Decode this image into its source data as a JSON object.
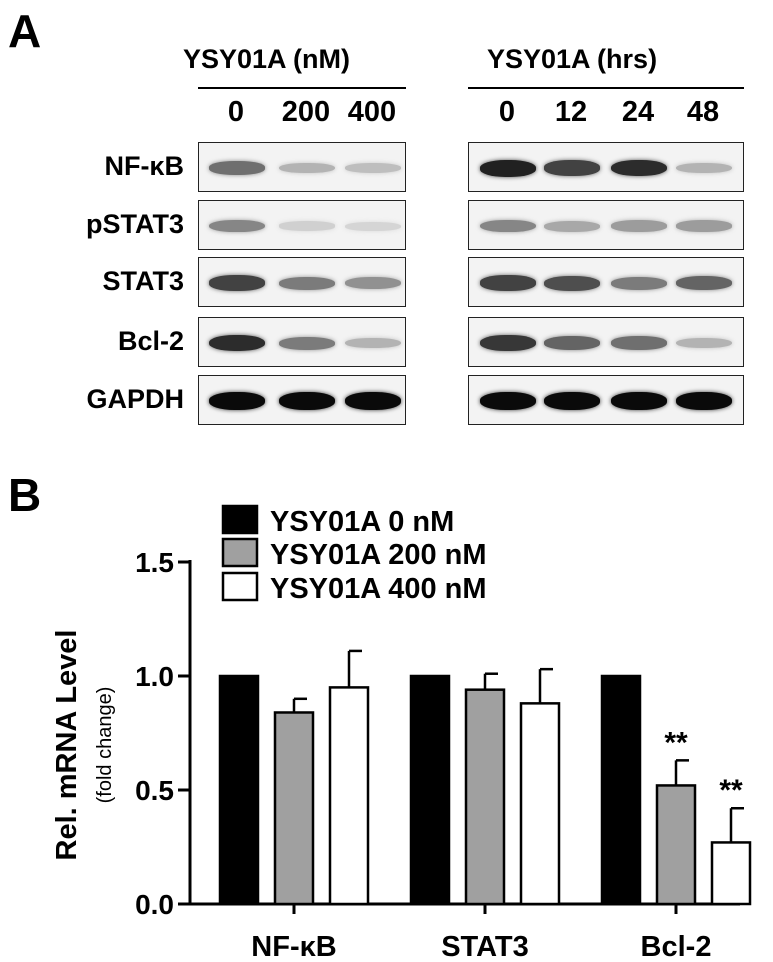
{
  "panel_a": {
    "letter": "A",
    "dose_header": "YSY01A (nM)",
    "time_header": "YSY01A (hrs)",
    "dose_lanes": [
      "0",
      "200",
      "400"
    ],
    "time_lanes": [
      "0",
      "12",
      "24",
      "48"
    ],
    "rows": [
      {
        "label": "NF-κB",
        "dose_intensity": [
          0.55,
          0.25,
          0.2
        ],
        "time_intensity": [
          0.9,
          0.75,
          0.85,
          0.25
        ]
      },
      {
        "label": "pSTAT3",
        "dose_intensity": [
          0.45,
          0.12,
          0.1
        ],
        "time_intensity": [
          0.45,
          0.3,
          0.35,
          0.35
        ]
      },
      {
        "label": "STAT3",
        "dose_intensity": [
          0.75,
          0.5,
          0.4
        ],
        "time_intensity": [
          0.75,
          0.7,
          0.5,
          0.6
        ]
      },
      {
        "label": "Bcl-2",
        "dose_intensity": [
          0.85,
          0.5,
          0.25
        ],
        "time_intensity": [
          0.8,
          0.6,
          0.55,
          0.25
        ]
      },
      {
        "label": "GAPDH",
        "dose_intensity": [
          1.0,
          1.0,
          1.0
        ],
        "time_intensity": [
          1.0,
          1.0,
          1.0,
          1.0
        ]
      }
    ]
  },
  "panel_b": {
    "letter": "B"
  },
  "chart_data": {
    "type": "bar",
    "categories": [
      "NF-κB",
      "STAT3",
      "Bcl-2"
    ],
    "series": [
      {
        "name": "YSY01A 0 nM",
        "values": [
          1.0,
          1.0,
          1.0
        ],
        "errors": [
          0,
          0,
          0
        ],
        "color": "#000000"
      },
      {
        "name": "YSY01A 200 nM",
        "values": [
          0.84,
          0.94,
          0.52
        ],
        "errors": [
          0.06,
          0.07,
          0.11
        ],
        "color": "#a0a0a0"
      },
      {
        "name": "YSY01A 400 nM",
        "values": [
          0.95,
          0.88,
          0.27
        ],
        "errors": [
          0.16,
          0.15,
          0.15
        ],
        "color": "#ffffff"
      }
    ],
    "annotations": [
      {
        "category": "Bcl-2",
        "series": "YSY01A 200 nM",
        "text": "**"
      },
      {
        "category": "Bcl-2",
        "series": "YSY01A 400 nM",
        "text": "**"
      }
    ],
    "ylabel": "Rel. mRNA Level",
    "ylabel_sub": "(fold change)",
    "yticks": [
      "0.0",
      "0.5",
      "1.0",
      "1.5"
    ],
    "ylim": [
      0,
      1.5
    ],
    "legend_position": "top"
  }
}
